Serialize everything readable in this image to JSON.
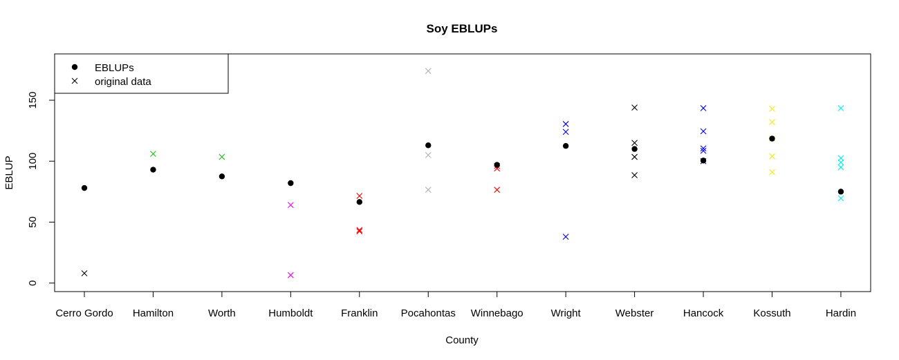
{
  "chart_data": {
    "type": "scatter",
    "title": "Soy EBLUPs",
    "xlabel": "County",
    "ylabel": "EBLUP",
    "categories": [
      "Cerro Gordo",
      "Hamilton",
      "Worth",
      "Humboldt",
      "Franklin",
      "Pocahontas",
      "Winnebago",
      "Wright",
      "Webster",
      "Hancock",
      "Kossuth",
      "Hardin"
    ],
    "yticks": [
      "0",
      "50",
      "100",
      "150"
    ],
    "ylim": [
      -7,
      188
    ],
    "grid": false,
    "legend": {
      "placement": "top-left",
      "entries": [
        {
          "label": "EBLUPs",
          "marker": "filled-circle"
        },
        {
          "label": "original data",
          "marker": "cross"
        }
      ]
    },
    "eblups": [
      78,
      93,
      87.5,
      82,
      66.5,
      113,
      97,
      112.5,
      110,
      100.5,
      118.5,
      75
    ],
    "original_data": [
      {
        "county": "Cerro Gordo",
        "color": "#000000",
        "values": [
          8
        ]
      },
      {
        "county": "Hamilton",
        "color": "#22bb22",
        "values": [
          106
        ]
      },
      {
        "county": "Worth",
        "color": "#22bb22",
        "values": [
          103.5
        ]
      },
      {
        "county": "Humboldt",
        "color": "#ee00ee",
        "values": [
          64,
          6.5
        ]
      },
      {
        "county": "Franklin",
        "color": "#ee0000",
        "values": [
          71.5,
          43.5,
          42.5
        ]
      },
      {
        "county": "Pocahontas",
        "color": "#b0b0b0",
        "values": [
          174,
          105,
          76.5
        ]
      },
      {
        "county": "Winnebago",
        "color": "#ee0000",
        "values": [
          96,
          94,
          76.5
        ]
      },
      {
        "county": "Wright",
        "color": "#0000ee",
        "values": [
          130.5,
          124,
          38
        ]
      },
      {
        "county": "Webster",
        "color": "#000000",
        "values": [
          144,
          115,
          103.5,
          88.5
        ]
      },
      {
        "county": "Hancock",
        "color": "#0000ee",
        "values": [
          143.5,
          124.5,
          110.5,
          108.5,
          100
        ]
      },
      {
        "county": "Kossuth",
        "color": "#eeee00",
        "values": [
          143,
          132,
          118.5,
          104,
          91
        ]
      },
      {
        "county": "Hardin",
        "color": "#00eeee",
        "values": [
          143.5,
          102.5,
          99,
          95,
          69.5
        ]
      }
    ]
  }
}
